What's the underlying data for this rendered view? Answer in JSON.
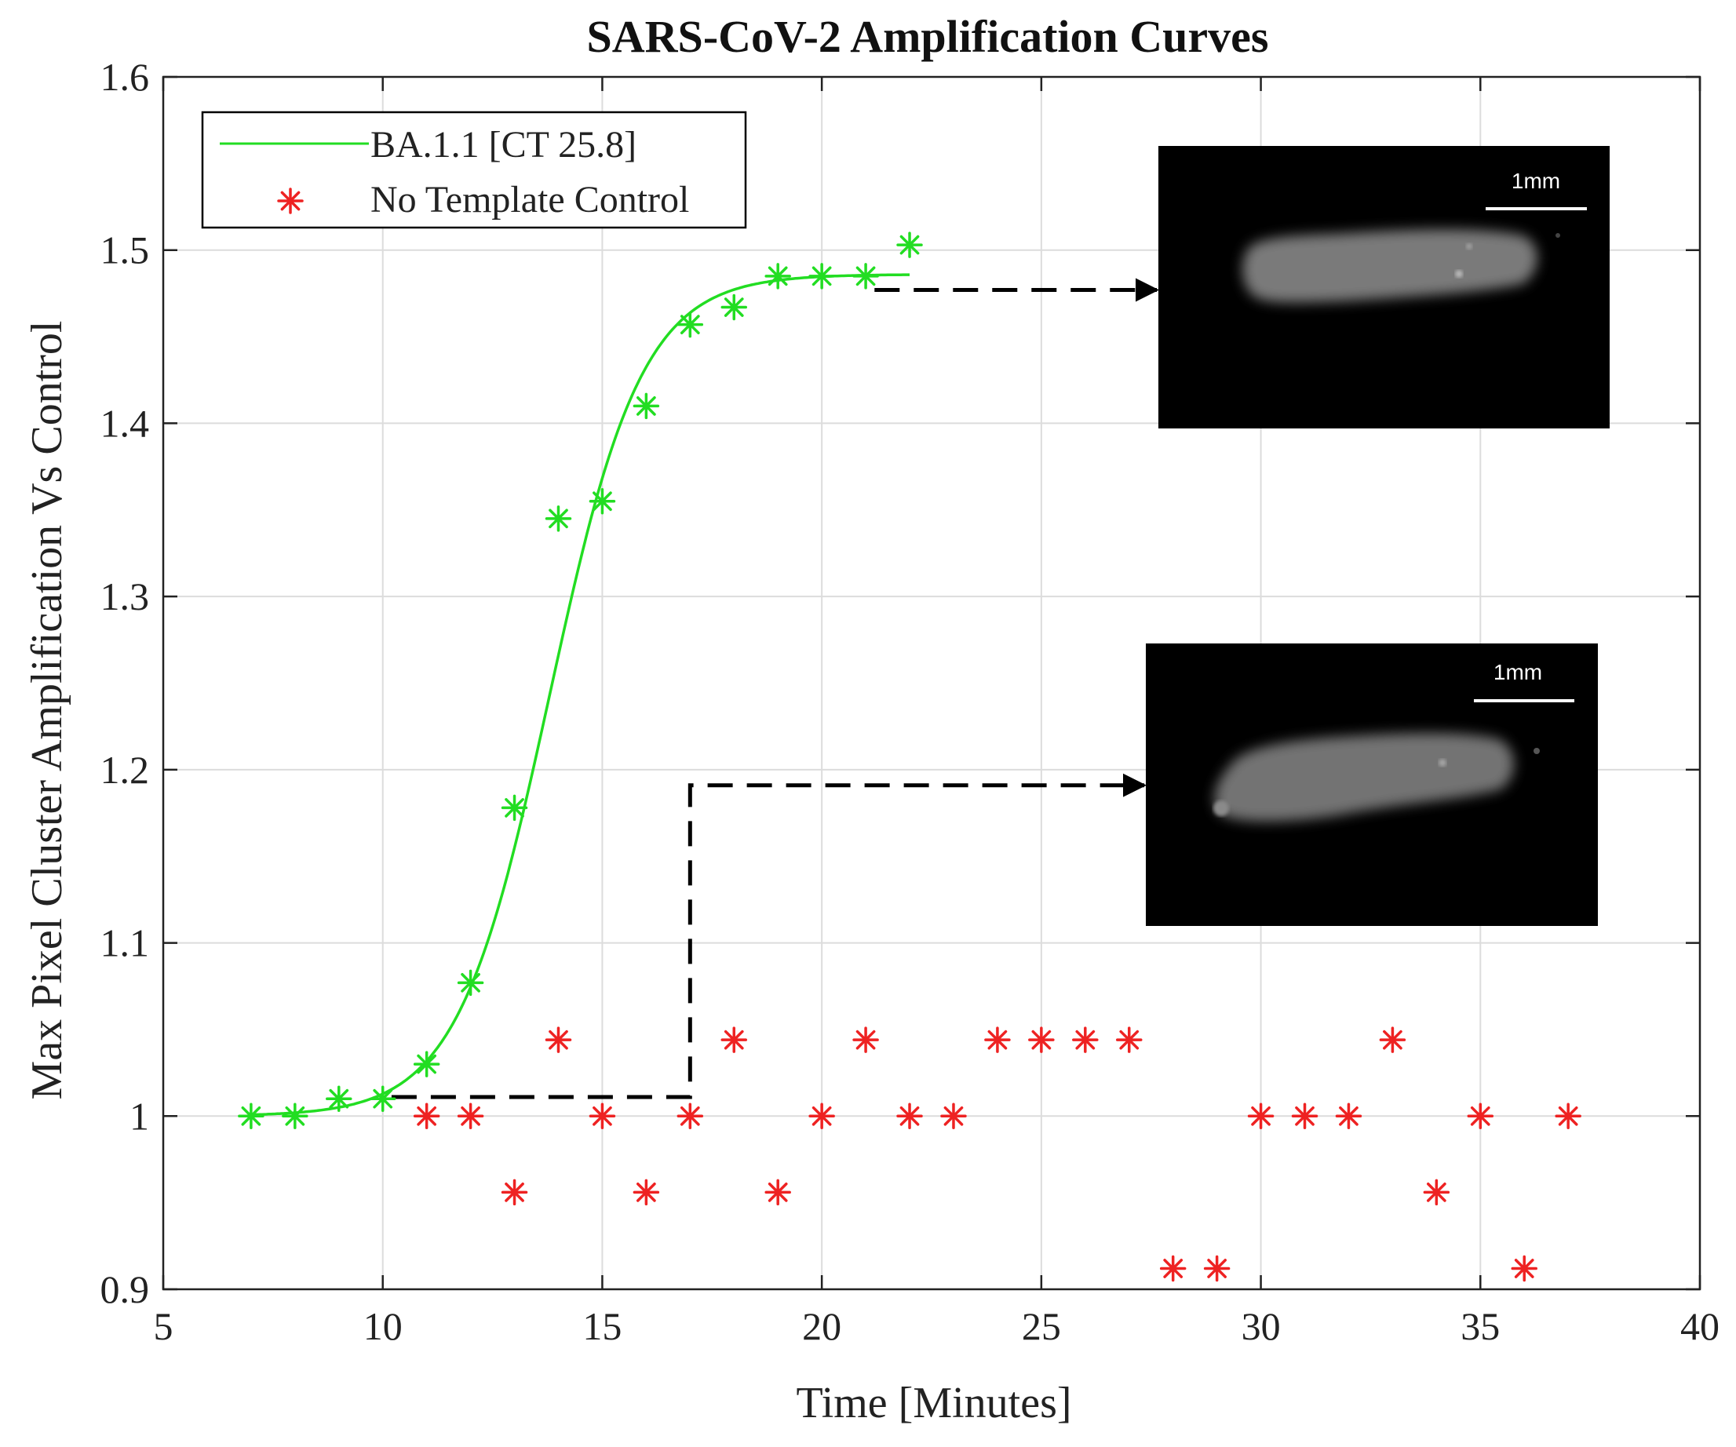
{
  "chart_data": {
    "type": "scatter",
    "title": "SARS-CoV-2 Amplification Curves",
    "xlabel": "Time [Minutes]",
    "ylabel": "Max Pixel Cluster Amplification Vs Control",
    "xlim": [
      5,
      40
    ],
    "ylim": [
      0.9,
      1.6
    ],
    "xticks": [
      5,
      10,
      15,
      20,
      25,
      30,
      35,
      40
    ],
    "yticks": [
      0.9,
      1,
      1.1,
      1.2,
      1.3,
      1.4,
      1.5,
      1.6
    ],
    "xtick_labels": [
      "5",
      "10",
      "15",
      "20",
      "25",
      "30",
      "35",
      "40"
    ],
    "ytick_labels": [
      "0.9",
      "1",
      "1.1",
      "1.2",
      "1.3",
      "1.4",
      "1.5",
      "1.6"
    ],
    "grid": true,
    "legend_position": "top-left",
    "series": [
      {
        "name": "BA.1.1 [CT 25.8]",
        "color": "#22dd22",
        "style": "line+asterisk",
        "x": [
          7,
          8,
          9,
          10,
          11,
          12,
          13,
          14,
          15,
          16,
          17,
          18,
          19,
          20,
          21,
          22
        ],
        "y": [
          1.0,
          1.0,
          1.01,
          1.01,
          1.03,
          1.077,
          1.178,
          1.345,
          1.355,
          1.41,
          1.457,
          1.467,
          1.485,
          1.485,
          1.485,
          1.503
        ],
        "fit": {
          "model": "sigmoid",
          "x_range": [
            7,
            22
          ],
          "baseline": 1.0,
          "plateau": 1.486,
          "midpoint": 13.8,
          "slope": 0.95
        }
      },
      {
        "name": "No Template Control",
        "color": "#ee2222",
        "style": "asterisk",
        "x": [
          11,
          12,
          13,
          14,
          15,
          16,
          17,
          18,
          19,
          20,
          21,
          22,
          23,
          24,
          25,
          26,
          27,
          28,
          29,
          30,
          31,
          32,
          33,
          34,
          35,
          36,
          37
        ],
        "y": [
          1.0,
          1.0,
          0.956,
          1.044,
          1.0,
          0.956,
          1.0,
          1.044,
          0.956,
          1.0,
          1.044,
          1.0,
          1.0,
          1.044,
          1.044,
          1.044,
          1.044,
          0.912,
          0.912,
          1.0,
          1.0,
          1.0,
          1.044,
          0.956,
          1.0,
          0.912,
          1.0
        ]
      }
    ],
    "annotations": [
      {
        "type": "dashed-arrow",
        "from": [
          21.2,
          1.477
        ],
        "to": "upper-inset",
        "path": "horizontal"
      },
      {
        "type": "dashed-arrow",
        "from": [
          10.2,
          1.011
        ],
        "corner_x": 17,
        "corner_y": 1.191,
        "to": "lower-inset",
        "path": "elbow"
      }
    ],
    "insets": [
      {
        "id": "upper-inset",
        "scale_bar_label": "1mm"
      },
      {
        "id": "lower-inset",
        "scale_bar_label": "1mm"
      }
    ]
  }
}
